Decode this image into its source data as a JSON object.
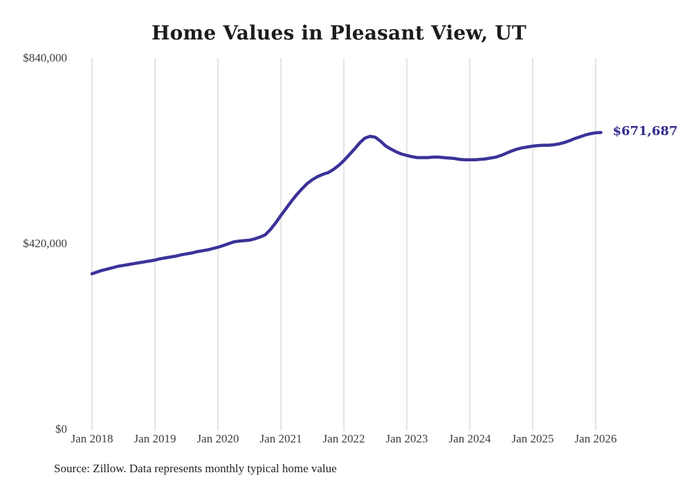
{
  "chart_data": {
    "type": "line",
    "title": "Home Values in Pleasant View, UT",
    "source": "Source: Zillow. Data represents monthly typical home value",
    "end_label": "$671,687",
    "latest_value": 671687,
    "xlabel": "",
    "ylabel": "",
    "x_tick_labels": [
      "Jan 2018",
      "Jan 2019",
      "Jan 2020",
      "Jan 2021",
      "Jan 2022",
      "Jan 2023",
      "Jan 2024",
      "Jan 2025",
      "Jan 2026"
    ],
    "y_ticks": [
      {
        "label": "$840,000",
        "value": 840000
      },
      {
        "label": "$420,000",
        "value": 420000
      },
      {
        "label": "$0",
        "value": 0
      }
    ],
    "ylim": [
      0,
      840000
    ],
    "grid": "vertical-only",
    "legend": "none",
    "colors": {
      "line": "#3b3299",
      "end_label": "#312c8c",
      "grid": "#c9c9c9",
      "title": "#1c1c1c",
      "axis_text": "#3d3d3d",
      "source_text": "#232323",
      "background": "#ffffff"
    },
    "series": [
      {
        "name": "Monthly typical home value",
        "start": "2018-01",
        "frequency": "monthly",
        "values": [
          352000,
          356000,
          360000,
          363000,
          366000,
          369000,
          371000,
          373000,
          375000,
          377000,
          379000,
          381000,
          383000,
          386000,
          388000,
          390000,
          392000,
          395000,
          397000,
          399000,
          402000,
          404000,
          406000,
          409000,
          412000,
          416000,
          420000,
          424000,
          426000,
          427000,
          428000,
          431000,
          435000,
          440000,
          452000,
          467000,
          484000,
          500000,
          516000,
          531000,
          544000,
          556000,
          565000,
          572000,
          577000,
          581000,
          588000,
          597000,
          608000,
          621000,
          634000,
          648000,
          659000,
          663000,
          661000,
          652000,
          641000,
          634000,
          628000,
          623000,
          620000,
          617000,
          615000,
          615000,
          615000,
          616000,
          616000,
          615000,
          614000,
          613000,
          611000,
          610000,
          610000,
          610000,
          611000,
          612000,
          614000,
          616000,
          620000,
          625000,
          630000,
          634000,
          637000,
          639000,
          641000,
          642000,
          643000,
          643000,
          644000,
          646000,
          649000,
          653000,
          658000,
          662000,
          666000,
          669000,
          671000,
          671687
        ]
      }
    ]
  }
}
